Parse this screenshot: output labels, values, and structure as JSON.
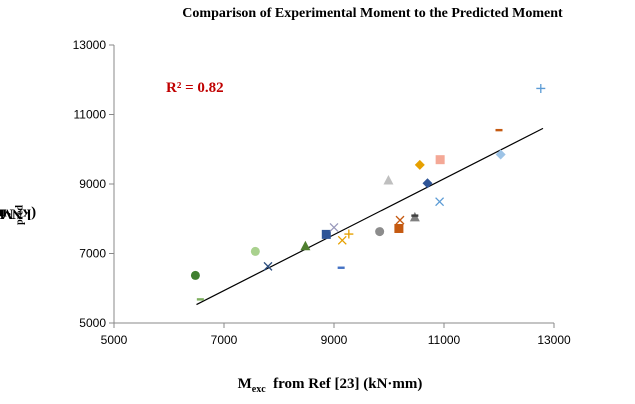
{
  "chart_data": {
    "type": "scatter",
    "title": "Comparison of Experimental Moment to the Predicted Moment",
    "xlabel": {
      "main": "M",
      "sub": "exc",
      "rest": "  from Ref [23] (kN·mm)"
    },
    "ylabel": {
      "main": "M",
      "sub": "pred",
      "rest": " (kN·mm)"
    },
    "annotation": "R² = 0.82",
    "xlim": [
      5000,
      13000
    ],
    "ylim": [
      5000,
      13000
    ],
    "xticks": [
      5000,
      7000,
      9000,
      11000,
      13000
    ],
    "yticks": [
      5000,
      7000,
      9000,
      11000,
      13000
    ],
    "xtick_labels": [
      "5000",
      "7000",
      "9000",
      "11000",
      "13000"
    ],
    "ytick_labels": [
      "5000",
      "7000",
      "9000",
      "11000",
      "13000"
    ],
    "trendline": {
      "x": [
        6500,
        12800
      ],
      "y": [
        5530,
        10600
      ]
    },
    "points": [
      {
        "x": 6480,
        "y": 6370,
        "marker": "circle",
        "color": "#3f7f2f"
      },
      {
        "x": 6570,
        "y": 5680,
        "marker": "dash",
        "color": "#7fb060"
      },
      {
        "x": 7570,
        "y": 7060,
        "marker": "circle",
        "color": "#a9d18e"
      },
      {
        "x": 7800,
        "y": 6630,
        "marker": "x",
        "color": "#2e4f80"
      },
      {
        "x": 8480,
        "y": 7210,
        "marker": "triangle",
        "color": "#4f7f2f"
      },
      {
        "x": 8860,
        "y": 7550,
        "marker": "square",
        "color": "#2f5597"
      },
      {
        "x": 9000,
        "y": 7750,
        "marker": "x",
        "color": "#9999bb"
      },
      {
        "x": 9130,
        "y": 6590,
        "marker": "dash",
        "color": "#4472c4"
      },
      {
        "x": 9150,
        "y": 7380,
        "marker": "x",
        "color": "#e6a000"
      },
      {
        "x": 9270,
        "y": 7560,
        "marker": "plus",
        "color": "#e6a000"
      },
      {
        "x": 9830,
        "y": 7630,
        "marker": "circle",
        "color": "#8c8c8c"
      },
      {
        "x": 9990,
        "y": 9100,
        "marker": "triangle",
        "color": "#bfbfbf"
      },
      {
        "x": 10180,
        "y": 7720,
        "marker": "square",
        "color": "#c55a11"
      },
      {
        "x": 10200,
        "y": 7960,
        "marker": "x",
        "color": "#c55a11"
      },
      {
        "x": 10470,
        "y": 8040,
        "marker": "triangle",
        "color": "#808080"
      },
      {
        "x": 10470,
        "y": 8090,
        "marker": "dash",
        "color": "#404040"
      },
      {
        "x": 10560,
        "y": 9550,
        "marker": "diamond",
        "color": "#e6a000"
      },
      {
        "x": 10700,
        "y": 9020,
        "marker": "diamond",
        "color": "#2f5597"
      },
      {
        "x": 10920,
        "y": 8490,
        "marker": "x",
        "color": "#5b9bd5"
      },
      {
        "x": 10930,
        "y": 9700,
        "marker": "square",
        "color": "#f4a896"
      },
      {
        "x": 12000,
        "y": 10550,
        "marker": "dash",
        "color": "#c55a11"
      },
      {
        "x": 12030,
        "y": 9850,
        "marker": "diamond",
        "color": "#9dc3e6"
      },
      {
        "x": 12760,
        "y": 11750,
        "marker": "plus",
        "color": "#5b9bd5"
      }
    ]
  }
}
